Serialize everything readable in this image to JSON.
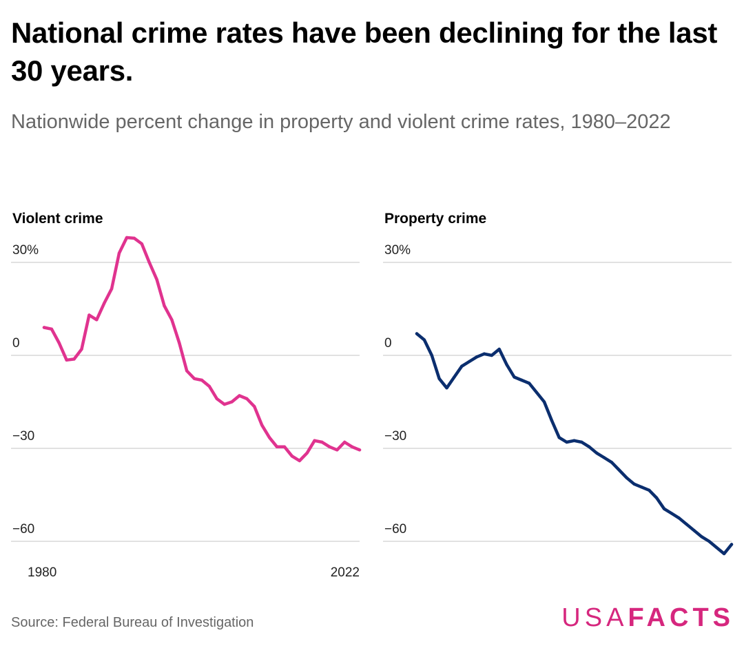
{
  "title": "National crime rates have been declining for the last 30 years.",
  "subtitle": "Nationwide percent change in property and violent crime rates, 1980–2022",
  "source": "Source: Federal Bureau of Investigation",
  "logo": {
    "thin": "USA",
    "bold": "FACTS",
    "color": "#d6277e"
  },
  "chart_data": [
    {
      "type": "line",
      "title": "Violent crime",
      "color": "#e0338f",
      "ylim": [
        -60,
        30
      ],
      "yticks": [
        30,
        0,
        -30,
        -60
      ],
      "ytick_labels": [
        "30%",
        "0",
        "−30",
        "−60"
      ],
      "xticks": [
        1980,
        2022
      ],
      "xlim": [
        1980,
        2022
      ],
      "grid": true,
      "x": [
        1980,
        1981,
        1982,
        1983,
        1984,
        1985,
        1986,
        1987,
        1988,
        1989,
        1990,
        1991,
        1992,
        1993,
        1994,
        1995,
        1996,
        1997,
        1998,
        1999,
        2000,
        2001,
        2002,
        2003,
        2004,
        2005,
        2006,
        2007,
        2008,
        2009,
        2010,
        2011,
        2012,
        2013,
        2014,
        2015,
        2016,
        2017,
        2018,
        2019,
        2020,
        2021,
        2022
      ],
      "values": [
        9,
        8.5,
        4,
        -1.5,
        -1.2,
        2,
        13,
        11.5,
        16.8,
        21.5,
        33,
        38,
        37.8,
        36,
        30,
        24.5,
        16,
        11.5,
        4,
        -5,
        -7.5,
        -8,
        -10,
        -14,
        -15.8,
        -15,
        -13,
        -14,
        -16.5,
        -22.5,
        -26.5,
        -29.5,
        -29.5,
        -32.5,
        -34,
        -31.5,
        -27.5,
        -28,
        -29.5,
        -30.5,
        -28,
        -29.5,
        -30.5
      ]
    },
    {
      "type": "line",
      "title": "Property crime",
      "color": "#0b2e6e",
      "ylim": [
        -60,
        30
      ],
      "yticks": [
        30,
        0,
        -30,
        -60
      ],
      "ytick_labels": [
        "30%",
        "0",
        "−30",
        "−60"
      ],
      "xticks": [],
      "xlim": [
        1980,
        2022
      ],
      "grid": true,
      "x": [
        1980,
        1981,
        1982,
        1983,
        1984,
        1985,
        1986,
        1987,
        1988,
        1989,
        1990,
        1991,
        1992,
        1993,
        1994,
        1995,
        1996,
        1997,
        1998,
        1999,
        2000,
        2001,
        2002,
        2003,
        2004,
        2005,
        2006,
        2007,
        2008,
        2009,
        2010,
        2011,
        2012,
        2013,
        2014,
        2015,
        2016,
        2017,
        2018,
        2019,
        2020,
        2021,
        2022
      ],
      "values": [
        7,
        5,
        0,
        -7.5,
        -10.5,
        -7,
        -3.5,
        -2,
        -0.5,
        0.5,
        0,
        2,
        -3,
        -7,
        -8,
        -9,
        -12,
        -15,
        -21,
        -26.5,
        -28,
        -27.5,
        -28,
        -29.5,
        -31.5,
        -33,
        -34.5,
        -37,
        -39.5,
        -41.5,
        -42.5,
        -43.5,
        -46,
        -49.5,
        -51,
        -52.5,
        -54.5,
        -56.5,
        -58.5,
        -60,
        -62,
        -64,
        -61
      ]
    }
  ]
}
